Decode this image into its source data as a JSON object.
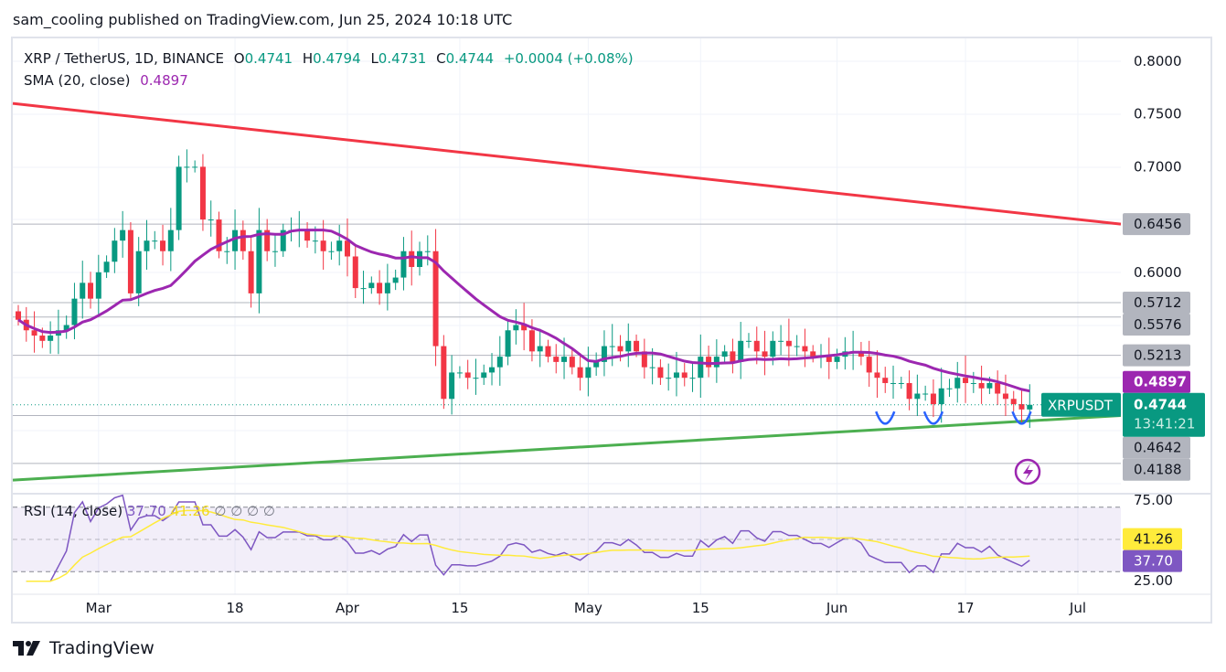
{
  "publisher": "sam_cooling published on TradingView.com, Jun 25, 2024 10:18 UTC",
  "legend": {
    "symbol": "XRP / TetherUS, 1D, BINANCE",
    "o_label": "O",
    "o": "0.4741",
    "h_label": "H",
    "h": "0.4794",
    "l_label": "L",
    "l": "0.4731",
    "c_label": "C",
    "c": "0.4744",
    "change": "+0.0004 (+0.08%)",
    "sma_label": "SMA (20, close)",
    "sma_value": "0.4897",
    "rsi_label": "RSI (14, close)",
    "rsi_value": "37.70",
    "rsi_ma_value": "41.26",
    "rsi_extra": "∅ ∅ ∅ ∅"
  },
  "logo_text": "TradingView",
  "colors": {
    "up": "#089981",
    "down": "#f23645",
    "sma": "#9c27b0",
    "rsi": "#7e57c2",
    "rsi_ma": "#ffeb3b",
    "resistance": "#f23645",
    "support": "#4caf50",
    "level": "#b2b5be",
    "annotation": "#2962ff"
  },
  "chart_data": {
    "type": "candlestick",
    "symbol_tag": "XRPUSDT",
    "closes": [
      0.555,
      0.545,
      0.54,
      0.535,
      0.54,
      0.545,
      0.55,
      0.575,
      0.59,
      0.575,
      0.6,
      0.61,
      0.63,
      0.64,
      0.58,
      0.62,
      0.63,
      0.63,
      0.62,
      0.64,
      0.7,
      0.7,
      0.7,
      0.65,
      0.65,
      0.62,
      0.62,
      0.64,
      0.62,
      0.58,
      0.64,
      0.62,
      0.62,
      0.64,
      0.64,
      0.64,
      0.63,
      0.63,
      0.62,
      0.62,
      0.63,
      0.615,
      0.585,
      0.585,
      0.59,
      0.58,
      0.59,
      0.595,
      0.62,
      0.605,
      0.62,
      0.62,
      0.53,
      0.48,
      0.505,
      0.505,
      0.5,
      0.5,
      0.505,
      0.51,
      0.52,
      0.545,
      0.55,
      0.545,
      0.525,
      0.53,
      0.52,
      0.515,
      0.52,
      0.51,
      0.5,
      0.51,
      0.515,
      0.53,
      0.53,
      0.525,
      0.535,
      0.525,
      0.51,
      0.51,
      0.5,
      0.5,
      0.505,
      0.5,
      0.5,
      0.52,
      0.51,
      0.52,
      0.525,
      0.515,
      0.535,
      0.535,
      0.525,
      0.52,
      0.535,
      0.535,
      0.53,
      0.53,
      0.525,
      0.52,
      0.52,
      0.515,
      0.52,
      0.525,
      0.525,
      0.52,
      0.505,
      0.5,
      0.495,
      0.495,
      0.495,
      0.48,
      0.485,
      0.485,
      0.475,
      0.49,
      0.49,
      0.5,
      0.495,
      0.495,
      0.49,
      0.495,
      0.485,
      0.48,
      0.475,
      0.47,
      0.4744
    ],
    "price_ticks": [
      "0.8000",
      "0.7500",
      "0.7000",
      "0.6000"
    ],
    "levels": [
      "0.6456",
      "0.5712",
      "0.5576",
      "0.5213",
      "0.4642",
      "0.4188"
    ],
    "last_price": "0.4744",
    "countdown": "13:41:21",
    "sma_label_value": "0.4897",
    "x_ticks": [
      {
        "label": "Mar",
        "bar": 10
      },
      {
        "label": "18",
        "bar": 27
      },
      {
        "label": "Apr",
        "bar": 41
      },
      {
        "label": "15",
        "bar": 55
      },
      {
        "label": "May",
        "bar": 71
      },
      {
        "label": "15",
        "bar": 85
      },
      {
        "label": "Jun",
        "bar": 102
      },
      {
        "label": "17",
        "bar": 118
      },
      {
        "label": "Jul",
        "bar": 132
      }
    ],
    "resistance_line": {
      "start": 0.76,
      "end": 0.6456
    },
    "support_line": {
      "start": 0.403,
      "end": 0.4642
    },
    "rsi_ticks": [
      "75.00",
      "25.00"
    ],
    "rsi_bands": [
      70,
      50,
      30
    ],
    "rsi_last": "37.70",
    "rsi_ma_last": "41.26"
  }
}
